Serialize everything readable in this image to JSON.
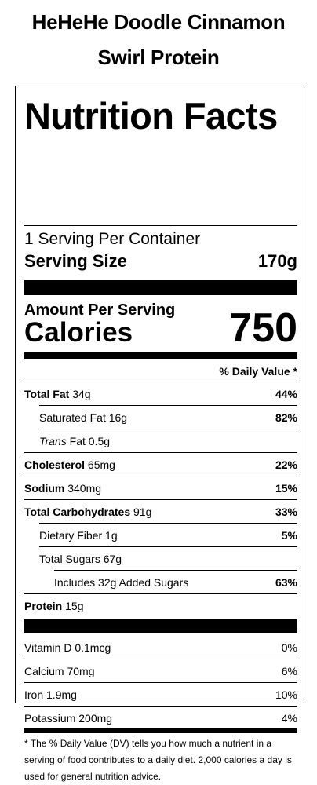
{
  "product": {
    "title_line1": "HeHeHe Doodle Cinnamon",
    "title_line2": "Swirl Protein"
  },
  "label": {
    "title": "Nutrition Facts",
    "servings_per_container": "1 Serving Per Container",
    "serving_size_label": "Serving Size",
    "serving_size_value": "170g",
    "amount_per_serving": "Amount Per Serving",
    "calories_label": "Calories",
    "calories_value": "750",
    "daily_value_header": "% Daily Value *"
  },
  "nutrients": [
    {
      "label": "Total Fat",
      "amount": "34g",
      "dv": "44%"
    },
    {
      "label": "Saturated Fat",
      "amount": "16g",
      "dv": "82%"
    },
    {
      "label": "Trans",
      "label_rest": "Fat",
      "amount": "0.5g",
      "dv": ""
    },
    {
      "label": "Cholesterol",
      "amount": "65mg",
      "dv": "22%"
    },
    {
      "label": "Sodium",
      "amount": "340mg",
      "dv": "15%"
    },
    {
      "label": "Total Carbohydrates",
      "amount": "91g",
      "dv": "33%"
    },
    {
      "label": "Dietary Fiber",
      "amount": "1g",
      "dv": "5%"
    },
    {
      "label": "Total Sugars",
      "amount": "67g",
      "dv": ""
    },
    {
      "label": "Includes 32g Added Sugars",
      "amount": "",
      "dv": "63%"
    },
    {
      "label": "Protein",
      "amount": "15g",
      "dv": ""
    }
  ],
  "vitamins": [
    {
      "label": "Vitamin D",
      "amount": "0.1mcg",
      "dv": "0%"
    },
    {
      "label": "Calcium",
      "amount": "70mg",
      "dv": "6%"
    },
    {
      "label": "Iron",
      "amount": "1.9mg",
      "dv": "10%"
    },
    {
      "label": "Potassium",
      "amount": "200mg",
      "dv": "4%"
    }
  ],
  "footnote": "* The % Daily Value (DV) tells you how much a nutrient in a serving of food contributes to a daily diet. 2,000 calories a day is used for general nutrition advice."
}
